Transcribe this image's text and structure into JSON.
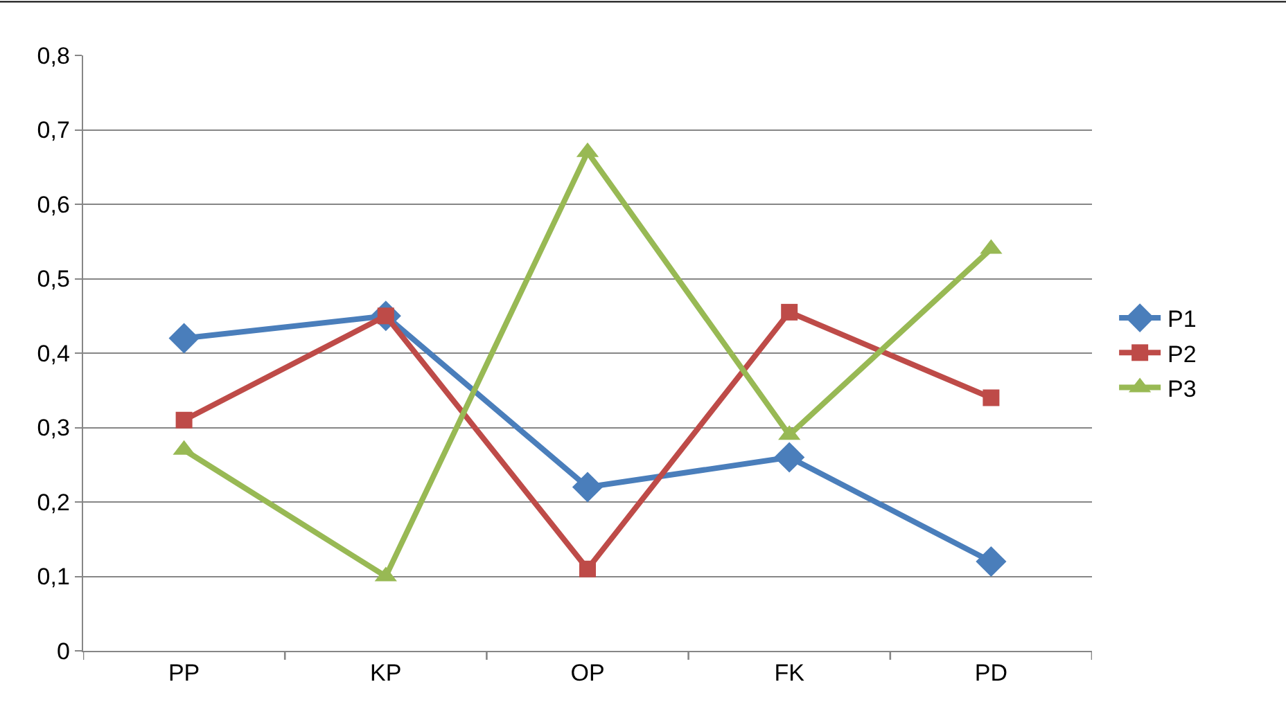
{
  "chart_data": {
    "type": "line",
    "categories": [
      "PP",
      "KP",
      "OP",
      "FK",
      "PD"
    ],
    "series": [
      {
        "name": "P1",
        "color": "#4a7ebb",
        "values": [
          0.42,
          0.45,
          0.22,
          0.26,
          0.12
        ],
        "marker": "diamond"
      },
      {
        "name": "P2",
        "color": "#be4b48",
        "values": [
          0.31,
          0.45,
          0.11,
          0.455,
          0.34
        ],
        "marker": "square"
      },
      {
        "name": "P3",
        "color": "#98b954",
        "values": [
          0.27,
          0.1,
          0.67,
          0.29,
          0.54
        ],
        "marker": "triangle"
      }
    ],
    "ylim": [
      0,
      0.8
    ],
    "yticks": [
      {
        "value": 0,
        "label": "0"
      },
      {
        "value": 0.1,
        "label": "0,1"
      },
      {
        "value": 0.2,
        "label": "0,2"
      },
      {
        "value": 0.3,
        "label": "0,3"
      },
      {
        "value": 0.4,
        "label": "0,4"
      },
      {
        "value": 0.5,
        "label": "0,5"
      },
      {
        "value": 0.6,
        "label": "0,6"
      },
      {
        "value": 0.7,
        "label": "0,7"
      },
      {
        "value": 0.8,
        "label": "0,8"
      }
    ],
    "grid": "y",
    "legend": "right",
    "line_style": "solid"
  }
}
